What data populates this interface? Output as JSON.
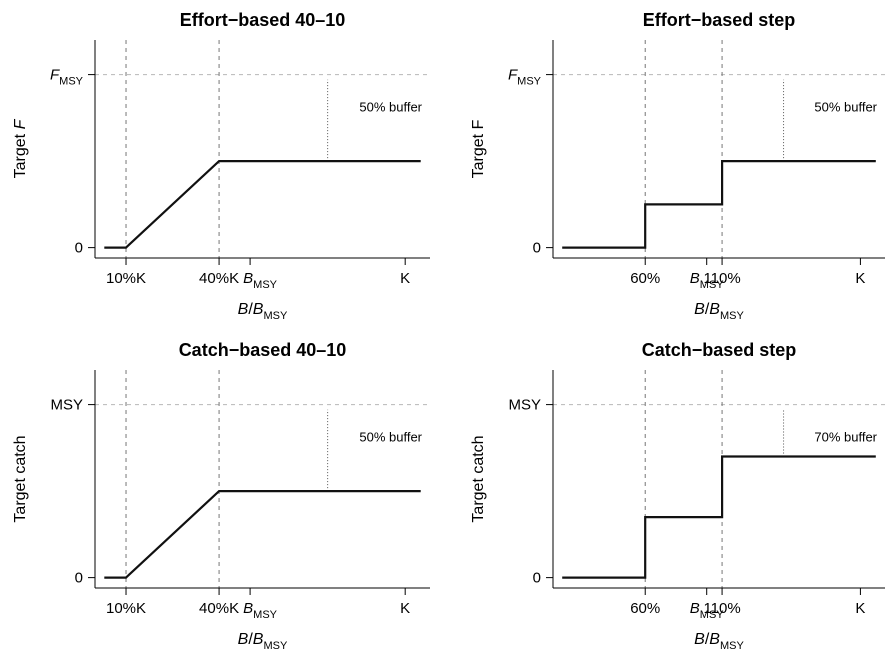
{
  "chart_data": [
    {
      "type": "line",
      "title": "Effort−based 40–10",
      "ylabel": "Target",
      "ylabel_var": "F",
      "ylabel_var_italic": true,
      "xlabel": {
        "main": "B/B",
        "sub": "MSY"
      },
      "x_scale": "B/K",
      "xlim": [
        0,
        1.08
      ],
      "ylim": [
        -0.06,
        1.2
      ],
      "x_ticks": [
        {
          "value": 0.1,
          "label": "10%K",
          "sub": ""
        },
        {
          "value": 0.4,
          "label": "40%K",
          "sub": ""
        },
        {
          "value": 0.5,
          "label": "B",
          "sub": "MSY",
          "italic": true,
          "gap": true
        },
        {
          "value": 1.0,
          "label": "K",
          "sub": ""
        }
      ],
      "y_ticks": [
        {
          "value": 0,
          "label": "0",
          "sub": "",
          "italic": false
        },
        {
          "value": 1,
          "label": "F",
          "sub": "MSY",
          "italic": true
        }
      ],
      "ref_lines_x": [
        0.1,
        0.4
      ],
      "ref_line_y": 1,
      "buffer": {
        "x": 0.75,
        "y_from": 0.5,
        "y_to": 0.97,
        "label": "50% buffer"
      },
      "series": [
        {
          "x": [
            0.03,
            0.1,
            0.4,
            1.05
          ],
          "y": [
            0,
            0,
            0.5,
            0.5
          ]
        }
      ]
    },
    {
      "type": "line",
      "title": "Effort−based step",
      "ylabel": "Target F",
      "ylabel_var": "",
      "ylabel_var_italic": false,
      "xlabel": {
        "main": "B/B",
        "sub": "MSY"
      },
      "x_scale": "B/BMSY",
      "xlim": [
        0,
        2.16
      ],
      "ylim": [
        -0.06,
        1.2
      ],
      "x_ticks": [
        {
          "value": 0.6,
          "label": "60%",
          "sub": ""
        },
        {
          "value": 1.0,
          "label": "B",
          "sub": "MSY",
          "italic": true
        },
        {
          "value": 1.1,
          "label": "110%",
          "sub": ""
        },
        {
          "value": 2.0,
          "label": "K",
          "sub": ""
        }
      ],
      "y_ticks": [
        {
          "value": 0,
          "label": "0",
          "sub": "",
          "italic": false
        },
        {
          "value": 1,
          "label": "F",
          "sub": "MSY",
          "italic": true
        }
      ],
      "ref_lines_x": [
        0.6,
        1.1
      ],
      "ref_line_y": 1,
      "buffer": {
        "x": 1.5,
        "y_from": 0.5,
        "y_to": 0.97,
        "label": "50% buffer"
      },
      "series": [
        {
          "x": [
            0.06,
            0.6,
            0.6,
            1.1,
            1.1,
            2.1
          ],
          "y": [
            0,
            0,
            0.25,
            0.25,
            0.5,
            0.5
          ]
        }
      ]
    },
    {
      "type": "line",
      "title": "Catch−based 40–10",
      "ylabel": "Target catch",
      "ylabel_var": "",
      "ylabel_var_italic": false,
      "xlabel": {
        "main": "B/B",
        "sub": "MSY"
      },
      "x_scale": "B/K",
      "xlim": [
        0,
        1.08
      ],
      "ylim": [
        -0.06,
        1.2
      ],
      "x_ticks": [
        {
          "value": 0.1,
          "label": "10%K",
          "sub": ""
        },
        {
          "value": 0.4,
          "label": "40%K",
          "sub": ""
        },
        {
          "value": 0.5,
          "label": "B",
          "sub": "MSY",
          "italic": true,
          "gap": true
        },
        {
          "value": 1.0,
          "label": "K",
          "sub": ""
        }
      ],
      "y_ticks": [
        {
          "value": 0,
          "label": "0",
          "sub": "",
          "italic": false
        },
        {
          "value": 1,
          "label": "MSY",
          "sub": "",
          "italic": false
        }
      ],
      "ref_lines_x": [
        0.1,
        0.4
      ],
      "ref_line_y": 1,
      "buffer": {
        "x": 0.75,
        "y_from": 0.5,
        "y_to": 0.97,
        "label": "50% buffer"
      },
      "series": [
        {
          "x": [
            0.03,
            0.1,
            0.4,
            1.05
          ],
          "y": [
            0,
            0,
            0.5,
            0.5
          ]
        }
      ]
    },
    {
      "type": "line",
      "title": "Catch−based step",
      "ylabel": "Target catch",
      "ylabel_var": "",
      "ylabel_var_italic": false,
      "xlabel": {
        "main": "B/B",
        "sub": "MSY"
      },
      "x_scale": "B/BMSY",
      "xlim": [
        0,
        2.16
      ],
      "ylim": [
        -0.06,
        1.2
      ],
      "x_ticks": [
        {
          "value": 0.6,
          "label": "60%",
          "sub": ""
        },
        {
          "value": 1.0,
          "label": "B",
          "sub": "MSY",
          "italic": true
        },
        {
          "value": 1.1,
          "label": "110%",
          "sub": ""
        },
        {
          "value": 2.0,
          "label": "K",
          "sub": ""
        }
      ],
      "y_ticks": [
        {
          "value": 0,
          "label": "0",
          "sub": "",
          "italic": false
        },
        {
          "value": 1,
          "label": "MSY",
          "sub": "",
          "italic": false
        }
      ],
      "ref_lines_x": [
        0.6,
        1.1
      ],
      "ref_line_y": 1,
      "buffer": {
        "x": 1.5,
        "y_from": 0.7,
        "y_to": 0.97,
        "label": "70% buffer"
      },
      "series": [
        {
          "x": [
            0.06,
            0.6,
            0.6,
            1.1,
            1.1,
            2.1
          ],
          "y": [
            0,
            0,
            0.35,
            0.35,
            0.7,
            0.7
          ]
        }
      ]
    }
  ]
}
